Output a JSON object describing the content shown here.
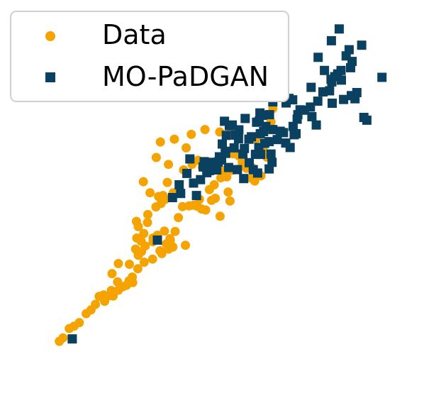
{
  "chart_data": {
    "type": "scatter",
    "axes_visible": false,
    "grid": false,
    "legend_placement": "top-left",
    "xlim": [
      0,
      100
    ],
    "ylim": [
      0,
      100
    ],
    "series": [
      {
        "name": "Data",
        "marker": "circle",
        "color": "#f5a300",
        "points": [
          [
            8.4,
            8.4
          ],
          [
            9.4,
            9.4
          ],
          [
            11.1,
            12.1
          ],
          [
            12.4,
            12.8
          ],
          [
            13.8,
            13.8
          ],
          [
            15.7,
            16.4
          ],
          [
            17.0,
            17.5
          ],
          [
            18.2,
            19.1
          ],
          [
            19.2,
            21.4
          ],
          [
            20.4,
            21.8
          ],
          [
            20.7,
            20.0
          ],
          [
            21.9,
            21.6
          ],
          [
            23.0,
            21.5
          ],
          [
            22.5,
            23.1
          ],
          [
            24.4,
            23.2
          ],
          [
            25.6,
            24.2
          ],
          [
            26.6,
            24.6
          ],
          [
            27.3,
            25.9
          ],
          [
            28.2,
            27.0
          ],
          [
            28.3,
            25.4
          ],
          [
            24.2,
            25.6
          ],
          [
            22.7,
            28.0
          ],
          [
            24.4,
            30.9
          ],
          [
            27.4,
            30.7
          ],
          [
            29.7,
            29.4
          ],
          [
            31.4,
            31.3
          ],
          [
            33.7,
            32.2
          ],
          [
            35.7,
            34.6
          ],
          [
            36.2,
            33.8
          ],
          [
            38.0,
            35.1
          ],
          [
            39.2,
            35.7
          ],
          [
            37.4,
            36.6
          ],
          [
            33.8,
            37.2
          ],
          [
            31.7,
            36.0
          ],
          [
            30.7,
            34.4
          ],
          [
            29.8,
            33.3
          ],
          [
            29.1,
            35.1
          ],
          [
            29.4,
            38.3
          ],
          [
            30.6,
            37.4
          ],
          [
            31.3,
            39.6
          ],
          [
            29.8,
            41.6
          ],
          [
            32.3,
            42.8
          ],
          [
            29.3,
            43.1
          ],
          [
            33.8,
            38.3
          ],
          [
            35.0,
            39.1
          ],
          [
            36.9,
            40.3
          ],
          [
            38.4,
            38.1
          ],
          [
            39.8,
            40.2
          ],
          [
            42.6,
            36.2
          ],
          [
            38.5,
            37.6
          ],
          [
            32.4,
            45.1
          ],
          [
            34.6,
            47.3
          ],
          [
            36.0,
            48.3
          ],
          [
            37.1,
            49.5
          ],
          [
            35.3,
            50.3
          ],
          [
            36.5,
            50.6
          ],
          [
            33.0,
            51.4
          ],
          [
            31.2,
            54.6
          ],
          [
            37.7,
            54.4
          ],
          [
            39.3,
            51.4
          ],
          [
            40.7,
            44.2
          ],
          [
            41.8,
            47.4
          ],
          [
            43.6,
            47.6
          ],
          [
            44.8,
            47.8
          ],
          [
            45.8,
            47.5
          ],
          [
            46.4,
            49.5
          ],
          [
            47.0,
            46.7
          ],
          [
            48.1,
            46.4
          ],
          [
            49.7,
            49.2
          ],
          [
            50.7,
            49.8
          ],
          [
            52.0,
            44.6
          ],
          [
            54.7,
            49.0
          ],
          [
            49.1,
            52.3
          ],
          [
            50.4,
            53.7
          ],
          [
            52.2,
            55.7
          ],
          [
            53.0,
            57.8
          ],
          [
            53.8,
            56.0
          ],
          [
            55.3,
            57.9
          ],
          [
            56.8,
            58.2
          ],
          [
            48.3,
            58.4
          ],
          [
            47.2,
            58.7
          ],
          [
            46.0,
            60.8
          ],
          [
            44.4,
            59.6
          ],
          [
            42.1,
            58.0
          ],
          [
            38.0,
            59.6
          ],
          [
            34.7,
            61.6
          ],
          [
            35.8,
            66.1
          ],
          [
            39.6,
            66.9
          ],
          [
            42.8,
            64.4
          ],
          [
            44.2,
            68.3
          ],
          [
            47.9,
            69.7
          ],
          [
            51.9,
            69.0
          ],
          [
            55.0,
            68.8
          ],
          [
            57.1,
            62.1
          ],
          [
            60.4,
            66.9
          ],
          [
            62.3,
            56.8
          ],
          [
            64.7,
            61.7
          ],
          [
            63.6,
            64.0
          ],
          [
            66.3,
            75.8
          ],
          [
            65.8,
            71.9
          ],
          [
            61.4,
            54.8
          ],
          [
            60.5,
            55.6
          ],
          [
            59.2,
            58.5
          ],
          [
            58.0,
            60.2
          ],
          [
            55.5,
            62.7
          ],
          [
            54.2,
            51.6
          ],
          [
            63.1,
            56.3
          ],
          [
            61.7,
            66.9
          ],
          [
            60.5,
            58.9
          ],
          [
            62.4,
            62.5
          ]
        ]
      },
      {
        "name": "MO-PaDGAN",
        "marker": "square",
        "color": "#0a4060",
        "points": [
          [
            11.9,
            9.1
          ],
          [
            35.0,
            37.7
          ],
          [
            39.1,
            50.0
          ],
          [
            40.9,
            53.7
          ],
          [
            41.3,
            51.2
          ],
          [
            43.0,
            57.0
          ],
          [
            43.8,
            61.2
          ],
          [
            44.8,
            54.2
          ],
          [
            45.6,
            50.6
          ],
          [
            46.7,
            55.2
          ],
          [
            47.4,
            58.9
          ],
          [
            47.7,
            60.4
          ],
          [
            48.4,
            57.2
          ],
          [
            49.1,
            57.8
          ],
          [
            50.0,
            60.2
          ],
          [
            50.8,
            59.3
          ],
          [
            51.1,
            58.0
          ],
          [
            51.8,
            61.8
          ],
          [
            52.4,
            60.9
          ],
          [
            53.4,
            63.4
          ],
          [
            53.7,
            68.0
          ],
          [
            52.6,
            65.5
          ],
          [
            53.2,
            72.1
          ],
          [
            54.5,
            70.8
          ],
          [
            55.3,
            71.0
          ],
          [
            55.8,
            64.4
          ],
          [
            56.2,
            68.1
          ],
          [
            57.1,
            69.6
          ],
          [
            58.8,
            72.9
          ],
          [
            59.8,
            66.9
          ],
          [
            58.6,
            64.2
          ],
          [
            59.9,
            60.1
          ],
          [
            61.0,
            58.1
          ],
          [
            61.6,
            62.5
          ],
          [
            62.5,
            64.5
          ],
          [
            63.0,
            62.5
          ],
          [
            64.1,
            65.7
          ],
          [
            65.3,
            66.2
          ],
          [
            65.8,
            62.6
          ],
          [
            63.8,
            69.1
          ],
          [
            62.6,
            72.1
          ],
          [
            62.8,
            74.5
          ],
          [
            63.5,
            73.8
          ],
          [
            64.4,
            70.6
          ],
          [
            65.4,
            74.0
          ],
          [
            66.3,
            77.7
          ],
          [
            66.3,
            69.7
          ],
          [
            68.3,
            69.2
          ],
          [
            69.2,
            68.8
          ],
          [
            69.9,
            77.4
          ],
          [
            70.7,
            78.7
          ],
          [
            71.7,
            78.3
          ],
          [
            71.8,
            70.6
          ],
          [
            72.1,
            68.2
          ],
          [
            72.6,
            68.5
          ],
          [
            72.9,
            72.7
          ],
          [
            73.1,
            74.0
          ],
          [
            73.7,
            75.4
          ],
          [
            74.9,
            75.3
          ],
          [
            76.5,
            76.2
          ],
          [
            76.9,
            73.4
          ],
          [
            78.1,
            71.0
          ],
          [
            78.5,
            77.9
          ],
          [
            79.9,
            80.6
          ],
          [
            81.7,
            80.9
          ],
          [
            82.4,
            77.3
          ],
          [
            82.1,
            84.2
          ],
          [
            83.9,
            85.8
          ],
          [
            82.3,
            83.5
          ],
          [
            84.8,
            86.8
          ],
          [
            85.5,
            78.4
          ],
          [
            87.6,
            79.5
          ],
          [
            88.6,
            78.6
          ],
          [
            90.4,
            94.1
          ],
          [
            95.9,
            84.8
          ],
          [
            84.3,
            98.8
          ],
          [
            87.0,
            92.8
          ],
          [
            86.2,
            91.0
          ],
          [
            82.2,
            95.4
          ],
          [
            76.7,
            81.9
          ],
          [
            78.6,
            90.6
          ],
          [
            80.3,
            86.8
          ],
          [
            83.1,
            85.0
          ],
          [
            84.9,
            84.0
          ],
          [
            87.4,
            87.6
          ],
          [
            87.8,
            89.4
          ],
          [
            89.1,
            80.4
          ],
          [
            91.0,
            73.2
          ],
          [
            91.8,
            72.4
          ],
          [
            71.0,
            64.5
          ],
          [
            69.8,
            65.8
          ],
          [
            67.5,
            66.8
          ],
          [
            66.1,
            60.2
          ],
          [
            65.3,
            58.3
          ],
          [
            62.2,
            57.1
          ],
          [
            58.4,
            55.5
          ],
          [
            56.7,
            58.1
          ],
          [
            54.3,
            58.7
          ],
          [
            53.5,
            62.8
          ],
          [
            51.5,
            60.3
          ],
          [
            57.0,
            67.0
          ],
          [
            58.2,
            62.6
          ],
          [
            60.5,
            67.6
          ],
          [
            61.9,
            71.8
          ],
          [
            62.9,
            68.5
          ]
        ]
      }
    ]
  }
}
